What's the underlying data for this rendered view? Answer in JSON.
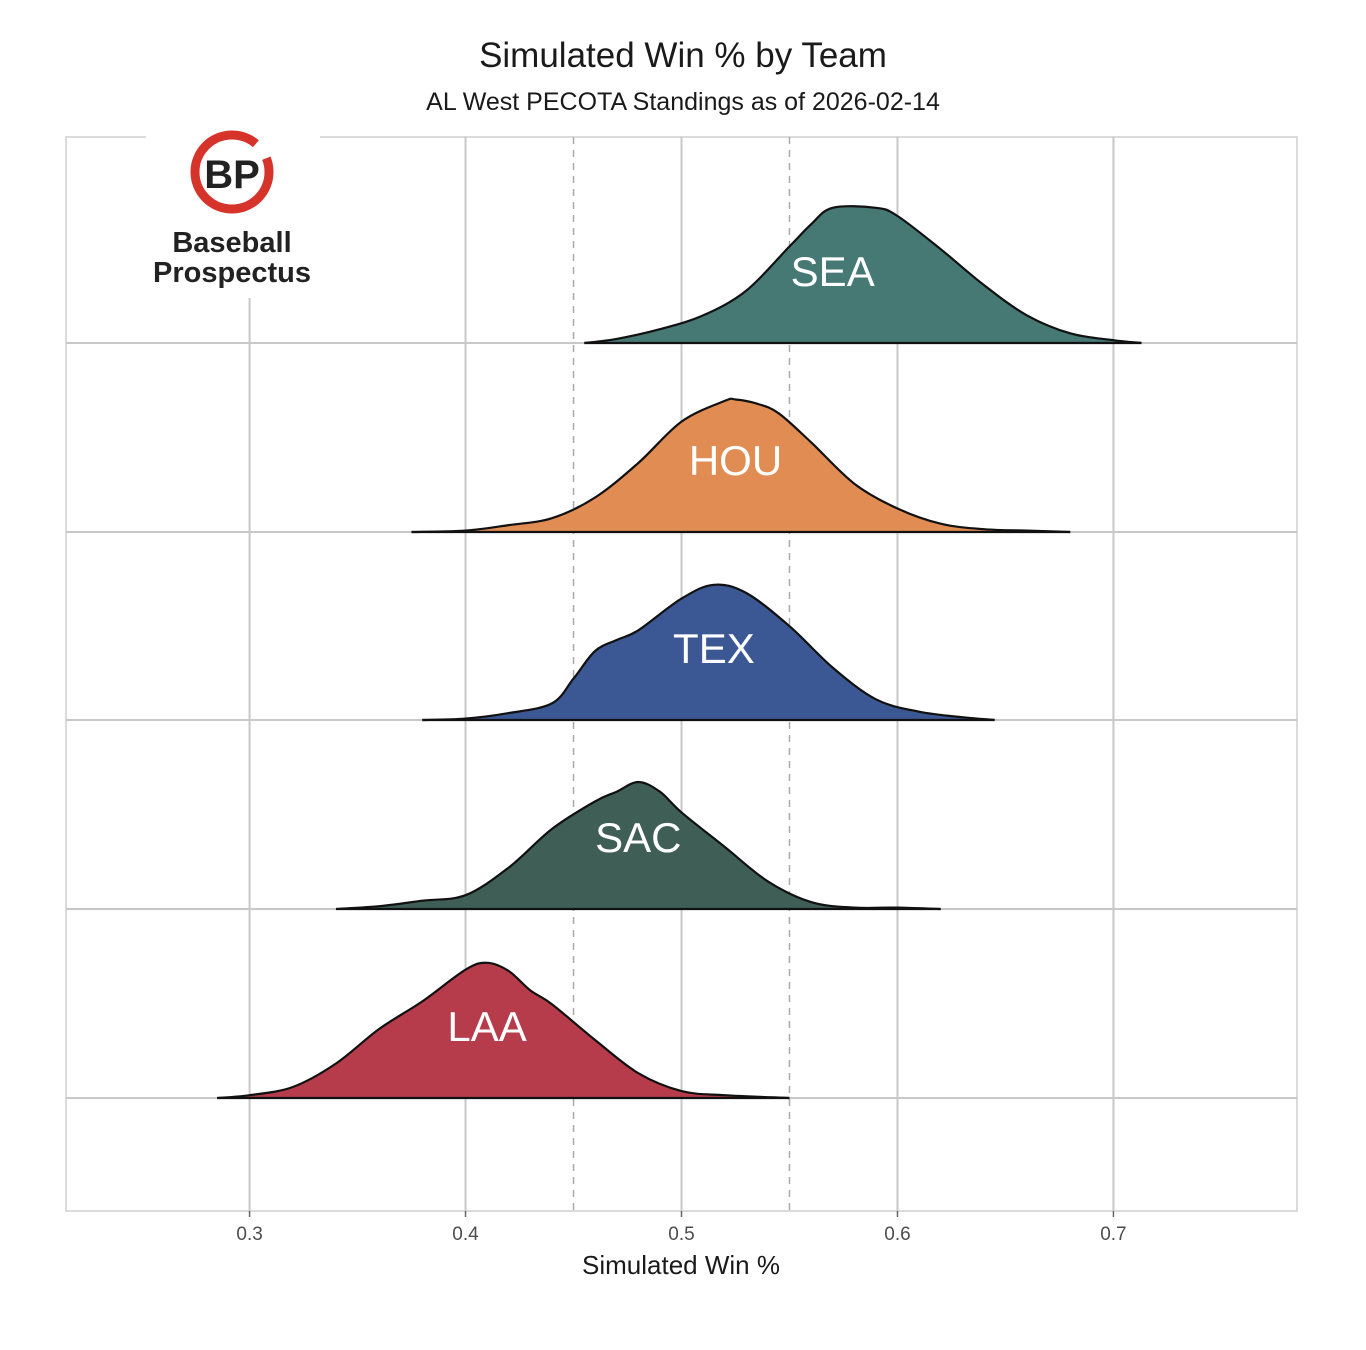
{
  "chart_data": {
    "type": "ridgeline",
    "title": "Simulated Win % by Team",
    "subtitle": "AL West PECOTA Standings as of 2026-02-14",
    "xlabel": "Simulated Win %",
    "ylabel": "",
    "xlim": [
      0.215,
      0.785
    ],
    "x_ticks": [
      0.3,
      0.4,
      0.5,
      0.6,
      0.7
    ],
    "x_tick_labels": [
      "0.3",
      "0.4",
      "0.5",
      "0.6",
      "0.7"
    ],
    "reference_lines": [
      0.45,
      0.55
    ],
    "reference_line_style": "dashed",
    "grid": true,
    "series": [
      {
        "name": "SEA",
        "color": "#467874",
        "x": [
          0.455,
          0.47,
          0.49,
          0.51,
          0.53,
          0.55,
          0.56,
          0.57,
          0.59,
          0.6,
          0.62,
          0.64,
          0.66,
          0.68,
          0.7,
          0.713
        ],
        "density": [
          0.0,
          0.03,
          0.1,
          0.2,
          0.38,
          0.7,
          0.86,
          0.98,
          0.98,
          0.92,
          0.68,
          0.42,
          0.2,
          0.07,
          0.02,
          0.0
        ]
      },
      {
        "name": "HOU",
        "color": "#e08c52",
        "x": [
          0.375,
          0.4,
          0.42,
          0.44,
          0.46,
          0.48,
          0.5,
          0.52,
          0.525,
          0.535,
          0.545,
          0.56,
          0.58,
          0.6,
          0.62,
          0.64,
          0.66,
          0.68
        ],
        "density": [
          0.0,
          0.01,
          0.05,
          0.1,
          0.25,
          0.5,
          0.8,
          0.95,
          0.96,
          0.93,
          0.86,
          0.65,
          0.35,
          0.17,
          0.06,
          0.02,
          0.01,
          0.0
        ]
      },
      {
        "name": "TEX",
        "color": "#3c5894",
        "x": [
          0.38,
          0.4,
          0.42,
          0.44,
          0.45,
          0.46,
          0.47,
          0.48,
          0.5,
          0.515,
          0.53,
          0.55,
          0.57,
          0.59,
          0.61,
          0.63,
          0.645
        ],
        "density": [
          0.0,
          0.01,
          0.05,
          0.12,
          0.3,
          0.5,
          0.58,
          0.65,
          0.88,
          0.98,
          0.92,
          0.68,
          0.38,
          0.15,
          0.06,
          0.02,
          0.0
        ]
      },
      {
        "name": "SAC",
        "color": "#3f5f56",
        "x": [
          0.34,
          0.36,
          0.38,
          0.4,
          0.42,
          0.44,
          0.46,
          0.47,
          0.48,
          0.49,
          0.5,
          0.52,
          0.54,
          0.56,
          0.58,
          0.6,
          0.62
        ],
        "density": [
          0.0,
          0.02,
          0.06,
          0.1,
          0.3,
          0.58,
          0.78,
          0.85,
          0.92,
          0.85,
          0.7,
          0.45,
          0.2,
          0.05,
          0.01,
          0.01,
          0.0
        ]
      },
      {
        "name": "LAA",
        "color": "#b63c4b",
        "x": [
          0.285,
          0.3,
          0.32,
          0.34,
          0.36,
          0.38,
          0.4,
          0.41,
          0.42,
          0.43,
          0.44,
          0.46,
          0.48,
          0.5,
          0.52,
          0.55
        ],
        "density": [
          0.0,
          0.02,
          0.08,
          0.25,
          0.5,
          0.7,
          0.93,
          0.98,
          0.92,
          0.78,
          0.68,
          0.42,
          0.18,
          0.05,
          0.02,
          0.0
        ]
      }
    ]
  },
  "logo": {
    "mark": "BP",
    "line1": "Baseball",
    "line2": "Prospectus",
    "ring_color": "#d6342b"
  }
}
